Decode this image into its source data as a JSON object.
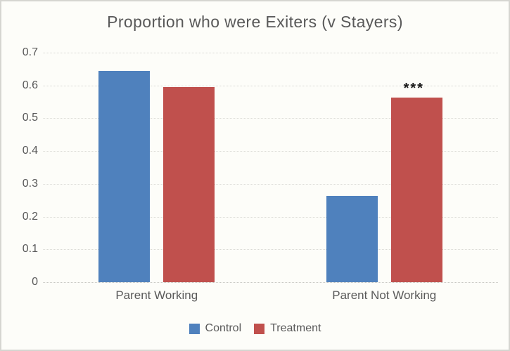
{
  "chart_data": {
    "type": "bar",
    "title": "Proportion who were Exiters (v Stayers)",
    "categories": [
      "Parent Working",
      "Parent Not Working"
    ],
    "series": [
      {
        "name": "Control",
        "color": "#4f81bd",
        "values": [
          0.645,
          0.263
        ]
      },
      {
        "name": "Treatment",
        "color": "#c0504d",
        "values": [
          0.595,
          0.563
        ]
      }
    ],
    "annotations": [
      {
        "text": "***",
        "series_index": 1,
        "category_index": 1
      }
    ],
    "xlabel": "",
    "ylabel": "",
    "ylim": [
      0,
      0.7
    ],
    "ytick_labels": [
      "0",
      "0.1",
      "0.2",
      "0.3",
      "0.4",
      "0.5",
      "0.6",
      "0.7"
    ],
    "grid": "horizontal-dotted",
    "legend_position": "bottom"
  },
  "style": {
    "text_color": "#595959",
    "gridline_color": "#d9d9d4",
    "baseline_color": "#c6c6c1",
    "background": "#fdfdf9",
    "border_color": "#d6d6d1",
    "annotation_color": "#1a1a1a"
  }
}
